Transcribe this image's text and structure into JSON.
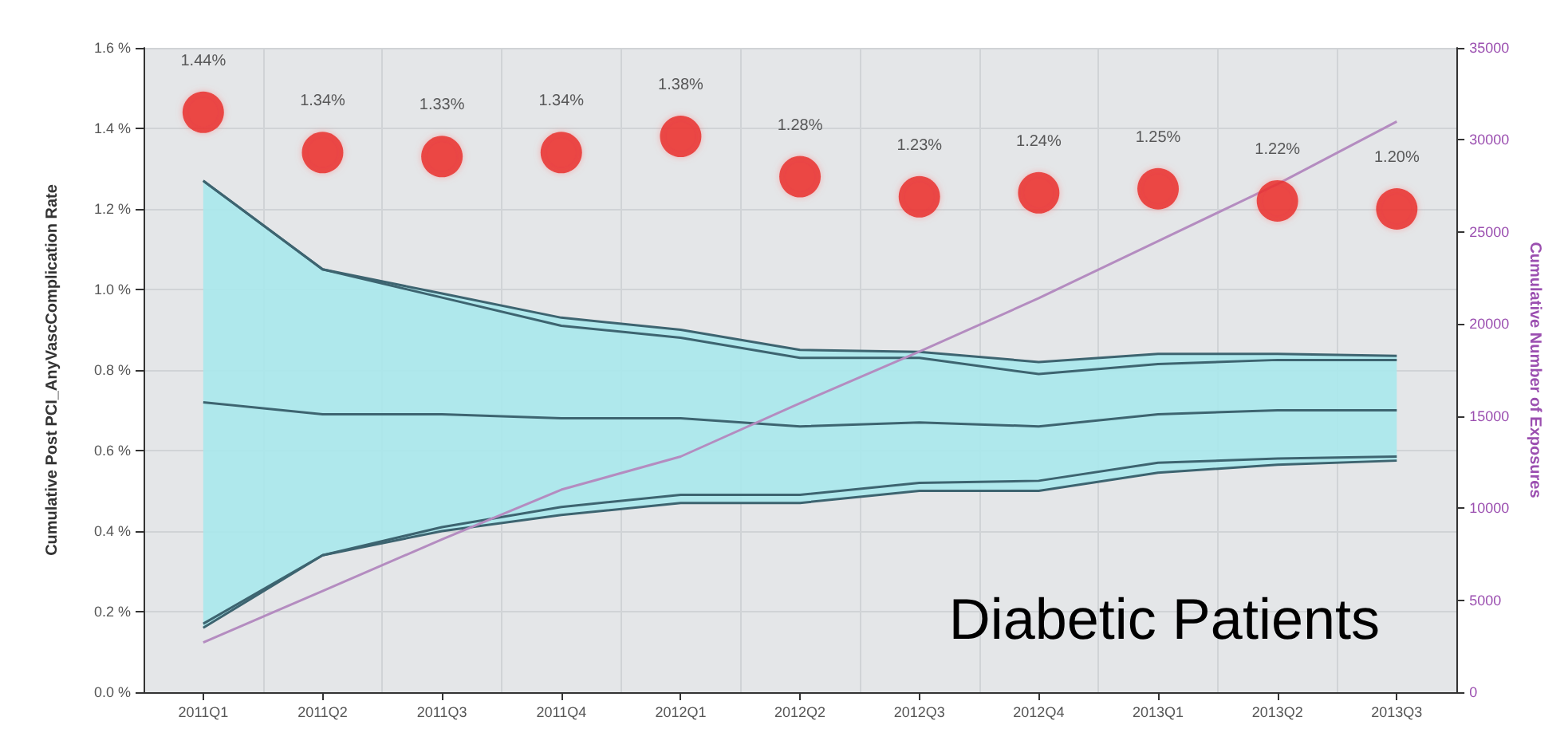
{
  "chart_data": {
    "type": "line",
    "ylabel": "Cumulative Post PCI_AnyVascComplication Rate",
    "y2label": "Cumulative Number of Exposures",
    "categories": [
      "2011Q1",
      "2011Q2",
      "2011Q3",
      "2011Q4",
      "2012Q1",
      "2012Q2",
      "2012Q3",
      "2012Q4",
      "2013Q1",
      "2013Q2",
      "2013Q3"
    ],
    "series": [
      {
        "color": "#3d6470",
        "marker": "none",
        "values": [
          1.27,
          1.05,
          0.99,
          0.93,
          0.9,
          0.85,
          0.845,
          0.82,
          0.84,
          0.84,
          0.835
        ]
      },
      {
        "color": "#3d6470",
        "marker": "none",
        "values": [
          0.16,
          0.34,
          0.4,
          0.44,
          0.47,
          0.47,
          0.5,
          0.5,
          0.545,
          0.565,
          0.575
        ]
      },
      {
        "color": "#3d6470",
        "marker": "none",
        "values": [
          0.72,
          0.69,
          0.69,
          0.68,
          0.68,
          0.66,
          0.67,
          0.66,
          0.69,
          0.7,
          0.7
        ],
        "lower": [
          0.16,
          0.34,
          0.4,
          0.44,
          0.47,
          0.47,
          0.5,
          0.5,
          0.545,
          0.565,
          0.575
        ],
        "upper": [
          1.27,
          1.05,
          0.99,
          0.93,
          0.9,
          0.85,
          0.845,
          0.82,
          0.84,
          0.84,
          0.835
        ]
      },
      {
        "color": "#3d6470",
        "marker": "none",
        "values": [
          1.27,
          1.05,
          0.98,
          0.91,
          0.88,
          0.83,
          0.83,
          0.79,
          0.815,
          0.825,
          0.825
        ]
      },
      {
        "color": "#3d6470",
        "marker": "none",
        "values": [
          0.17,
          0.34,
          0.41,
          0.46,
          0.49,
          0.49,
          0.52,
          0.525,
          0.57,
          0.58,
          0.585
        ]
      },
      {
        "axis": "y2",
        "color": "#b48cc0",
        "marker": "none",
        "values": [
          2700,
          5500,
          8300,
          11000,
          12800,
          15700,
          18500,
          21400,
          24500,
          27600,
          31000
        ]
      },
      {
        "type": "scatter",
        "color": "#e8201c",
        "marker": "circle",
        "values": [
          1.44,
          1.34,
          1.33,
          1.34,
          1.38,
          1.28,
          1.23,
          1.24,
          1.25,
          1.22,
          1.2
        ],
        "value_labels": [
          "1.44%",
          "1.34%",
          "1.33%",
          "1.34%",
          "1.38%",
          "1.28%",
          "1.23%",
          "1.24%",
          "1.25%",
          "1.22%",
          "1.20%"
        ]
      }
    ],
    "ylim": [
      0,
      1.6
    ],
    "yticks": [
      {
        "value": 0,
        "label": "0.0 %"
      },
      {
        "value": 0.2,
        "label": "0.2 %"
      },
      {
        "value": 0.4,
        "label": "0.4 %"
      },
      {
        "value": 0.6,
        "label": "0.6 %"
      },
      {
        "value": 0.8,
        "label": "0.8 %"
      },
      {
        "value": 1.0,
        "label": "1.0 %"
      },
      {
        "value": 1.2,
        "label": "1.2 %"
      },
      {
        "value": 1.4,
        "label": "1.4 %"
      },
      {
        "value": 1.6,
        "label": "1.6 %"
      }
    ],
    "y2lim": [
      0,
      35000
    ],
    "y2ticks": [
      0,
      5000,
      10000,
      15000,
      20000,
      25000,
      30000,
      35000
    ],
    "grid": true,
    "annotations": [
      "Diabetic Patients"
    ]
  }
}
